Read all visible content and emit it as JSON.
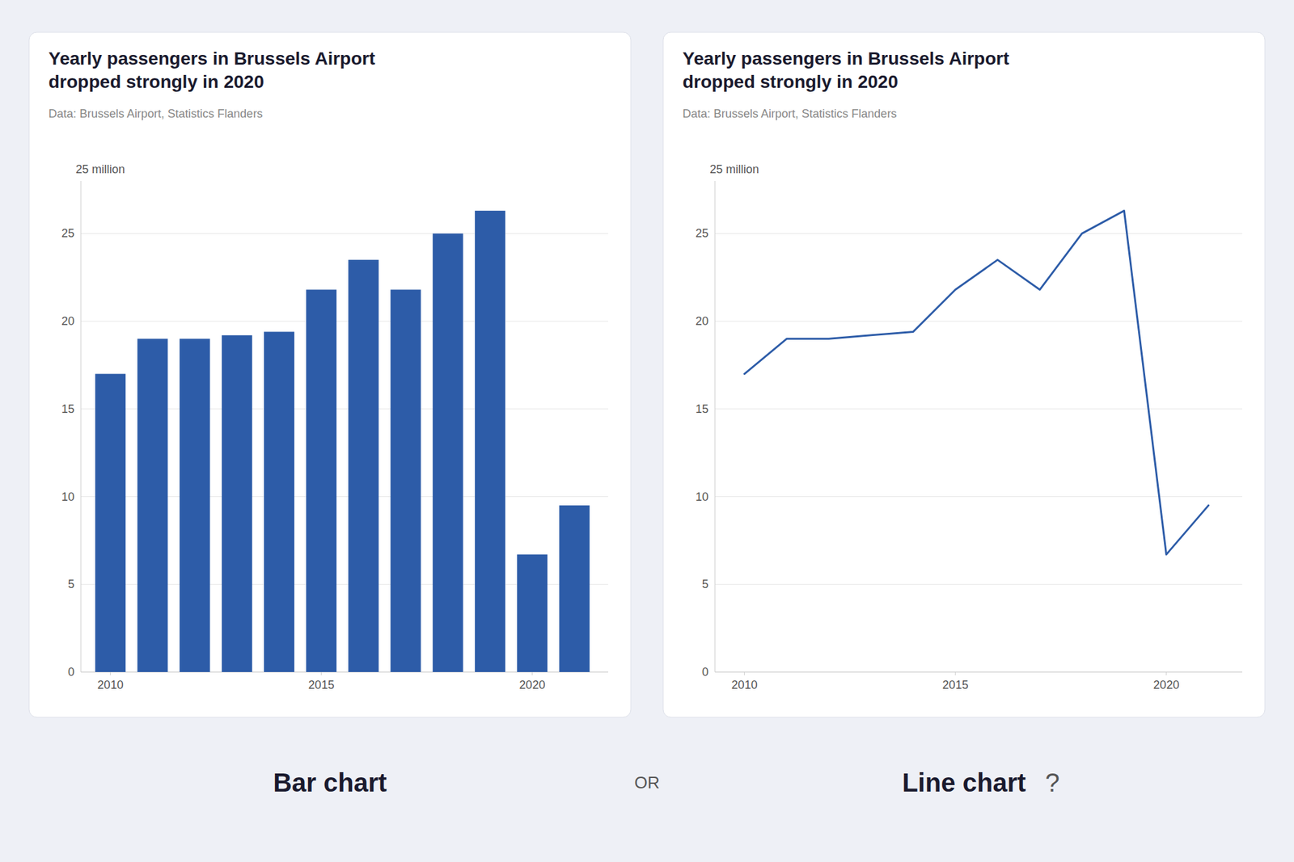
{
  "chart_data": [
    {
      "type": "bar",
      "title": [
        "Yearly passengers in Brussels Airport",
        "dropped strongly in 2020"
      ],
      "subtitle": "Data: Brussels Airport, Statistics Flanders",
      "y_label": "25 million",
      "caption": "Bar chart",
      "x": [
        2010,
        2011,
        2012,
        2013,
        2014,
        2015,
        2016,
        2017,
        2018,
        2019,
        2020,
        2021
      ],
      "values": [
        17.0,
        19.0,
        19.0,
        19.2,
        19.4,
        21.8,
        23.5,
        21.8,
        25.0,
        26.3,
        6.7,
        9.5
      ],
      "color": "#2d5ca8",
      "xlim": [
        2009.3,
        2021.8
      ],
      "xticks": [
        2010,
        2015,
        2020
      ],
      "ylim": [
        0,
        28
      ],
      "yticks": [
        0,
        5,
        10,
        15,
        20,
        25
      ],
      "grid": true
    },
    {
      "type": "line",
      "title": [
        "Yearly passengers in Brussels Airport",
        "dropped strongly in 2020"
      ],
      "subtitle": "Data: Brussels Airport, Statistics Flanders",
      "y_label": "25 million",
      "caption": "Line chart",
      "annotation": "?",
      "x": [
        2010,
        2011,
        2012,
        2013,
        2014,
        2015,
        2016,
        2017,
        2018,
        2019,
        2020,
        2021
      ],
      "values": [
        17.0,
        19.0,
        19.0,
        19.2,
        19.4,
        21.8,
        23.5,
        21.8,
        25.0,
        26.3,
        6.7,
        9.5
      ],
      "color": "#2d5ca8",
      "xlim": [
        2009.3,
        2021.8
      ],
      "xticks": [
        2010,
        2015,
        2020
      ],
      "ylim": [
        0,
        28
      ],
      "yticks": [
        0,
        5,
        10,
        15,
        20,
        25
      ],
      "grid": true
    }
  ],
  "separator": "OR"
}
